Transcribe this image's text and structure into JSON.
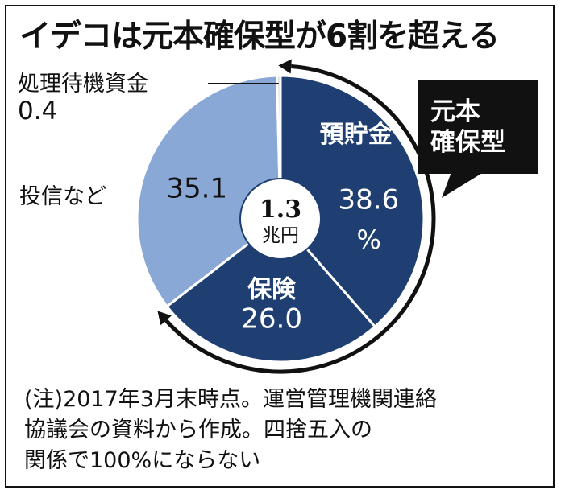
{
  "title": "イデコは元本確保型が6割を超える",
  "chart_data": {
    "type": "pie",
    "center_value": "1.3",
    "center_unit": "兆円",
    "slices": [
      {
        "label": "預貯金",
        "value": 38.6,
        "value_text": "38.6",
        "unit": "%",
        "color": "#1f3f72",
        "text_color": "#ffffff"
      },
      {
        "label": "保険",
        "value": 26.0,
        "value_text": "26.0",
        "unit": "",
        "color": "#1f3f72",
        "text_color": "#ffffff"
      },
      {
        "label": "投信など",
        "value": 35.1,
        "value_text": "35.1",
        "unit": "",
        "color": "#8aa8d6",
        "text_color": "#111111"
      },
      {
        "label": "処理待機資金",
        "value": 0.4,
        "value_text": "0.4",
        "unit": "",
        "color": "#d9d9d9",
        "text_color": "#111111"
      }
    ],
    "callout": [
      "元本",
      "確保型"
    ],
    "note": [
      "(注)2017年3月末時点。運営管理機関連絡",
      "協議会の資料から作成。四捨五入の",
      "関係で100%にならない"
    ]
  }
}
